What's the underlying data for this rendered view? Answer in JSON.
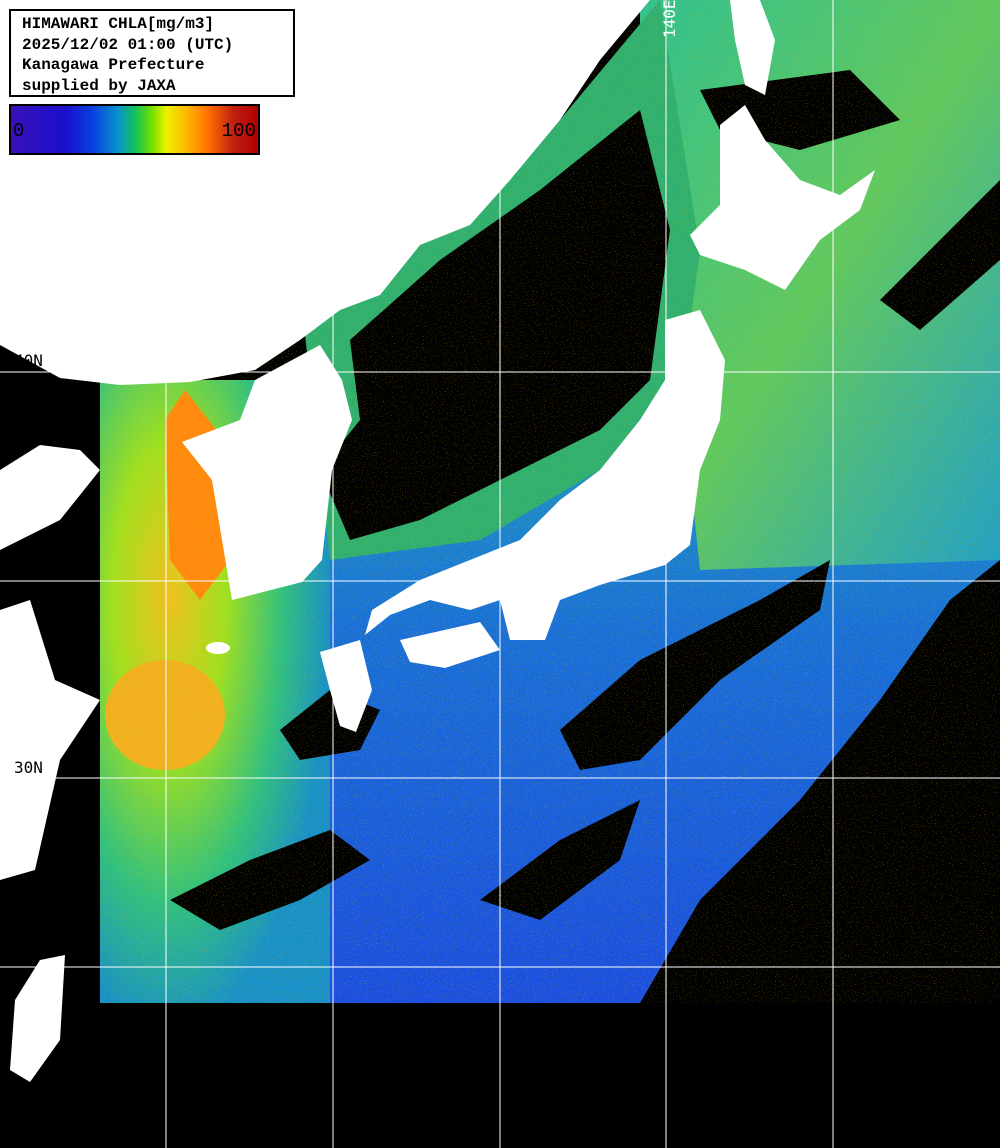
{
  "title_box": {
    "lines": [
      "HIMAWARI CHLA[mg/m3]",
      "2025/12/02 01:00 (UTC)",
      "Kanagawa Prefecture",
      "supplied by JAXA"
    ]
  },
  "colorbar": {
    "min_label": "0",
    "max_label": "100",
    "colors": [
      "#3a10b8",
      "#1a0fcc",
      "#0a90d0",
      "#10c060",
      "#f0f000",
      "#ffb000",
      "#ff7000",
      "#b00000"
    ]
  },
  "grid": {
    "lat_labels": [
      "40N",
      "30N"
    ],
    "lon_labels": [
      "140E"
    ]
  },
  "colors": {
    "land": "#ffffff",
    "no_data": "#000000",
    "grid_line": "#ffffff"
  }
}
